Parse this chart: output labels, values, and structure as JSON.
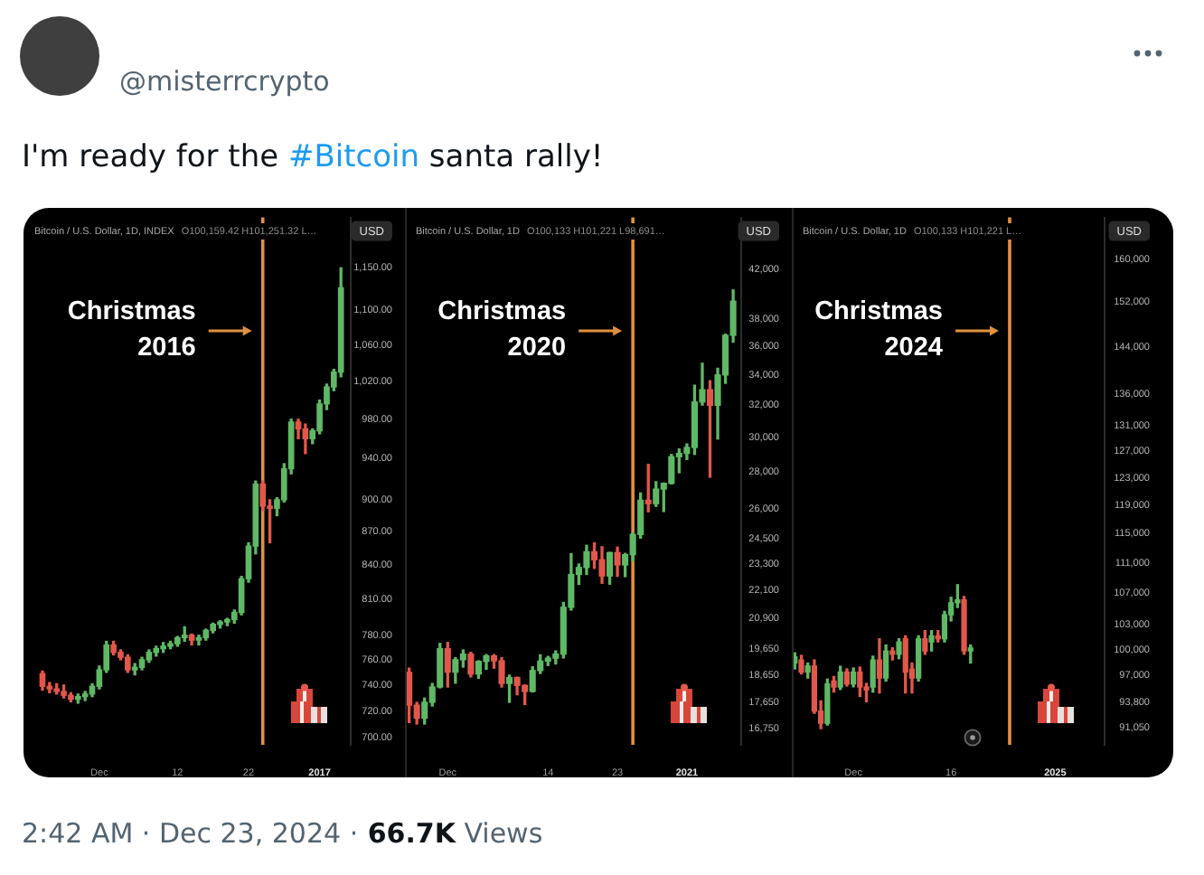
{
  "chart_data": [
    {
      "type": "other",
      "title": "I'm ready for the #Bitcoin santa rally!",
      "annotations": [
        "@misterrcrypto"
      ]
    },
    {
      "type": "candlestick",
      "title": "Bitcoin / U.S. Dollar, 1D, INDEX",
      "subtitle": "O100,159.42 H101,251.32 L…",
      "ylabel": "USD",
      "log": true,
      "x": [
        "2016-11-23",
        "2016-11-24",
        "2016-11-25",
        "2016-11-26",
        "2016-11-27",
        "2016-11-28",
        "2016-11-29",
        "2016-11-30",
        "2016-12-01",
        "2016-12-02",
        "2016-12-03",
        "2016-12-04",
        "2016-12-05",
        "2016-12-06",
        "2016-12-07",
        "2016-12-08",
        "2016-12-09",
        "2016-12-10",
        "2016-12-11",
        "2016-12-12",
        "2016-12-13",
        "2016-12-14",
        "2016-12-15",
        "2016-12-16",
        "2016-12-17",
        "2016-12-18",
        "2016-12-19",
        "2016-12-20",
        "2016-12-21",
        "2016-12-22",
        "2016-12-23",
        "2016-12-24",
        "2016-12-25",
        "2016-12-26",
        "2016-12-27",
        "2016-12-28",
        "2016-12-29",
        "2016-12-30",
        "2016-12-31",
        "2017-01-01",
        "2017-01-02",
        "2017-01-03",
        "2017-01-04"
      ],
      "ohlc": [
        [
          749,
          751,
          736,
          739
        ],
        [
          739,
          742,
          734,
          737
        ],
        [
          737,
          741,
          733,
          735
        ],
        [
          735,
          740,
          730,
          732
        ],
        [
          732,
          734,
          727,
          729
        ],
        [
          729,
          733,
          726,
          731
        ],
        [
          731,
          735,
          728,
          733
        ],
        [
          733,
          741,
          731,
          739
        ],
        [
          739,
          755,
          737,
          752
        ],
        [
          752,
          775,
          750,
          772
        ],
        [
          772,
          775,
          764,
          766
        ],
        [
          766,
          768,
          760,
          762
        ],
        [
          762,
          764,
          750,
          752
        ],
        [
          752,
          757,
          748,
          754
        ],
        [
          754,
          762,
          752,
          760
        ],
        [
          760,
          768,
          758,
          766
        ],
        [
          766,
          771,
          763,
          769
        ],
        [
          769,
          774,
          766,
          771
        ],
        [
          771,
          775,
          769,
          773
        ],
        [
          773,
          779,
          771,
          778
        ],
        [
          778,
          787,
          775,
          780
        ],
        [
          780,
          781,
          772,
          776
        ],
        [
          776,
          780,
          772,
          778
        ],
        [
          778,
          785,
          776,
          784
        ],
        [
          784,
          790,
          782,
          789
        ],
        [
          789,
          792,
          786,
          791
        ],
        [
          791,
          794,
          788,
          793
        ],
        [
          793,
          801,
          790,
          799
        ],
        [
          799,
          830,
          797,
          828
        ],
        [
          828,
          860,
          825,
          857
        ],
        [
          857,
          918,
          850,
          915
        ],
        [
          915,
          918,
          890,
          894
        ],
        [
          894,
          900,
          860,
          892
        ],
        [
          892,
          902,
          885,
          900
        ],
        [
          900,
          935,
          898,
          930
        ],
        [
          930,
          980,
          925,
          977
        ],
        [
          977,
          980,
          960,
          970
        ],
        [
          970,
          975,
          945,
          960
        ],
        [
          960,
          970,
          955,
          968
        ],
        [
          968,
          1000,
          965,
          996
        ],
        [
          996,
          1017,
          990,
          1014
        ],
        [
          1014,
          1033,
          1010,
          1030
        ],
        [
          1030,
          1150,
          1025,
          1126
        ]
      ],
      "xlim": [
        "2016-11-20T08:00",
        "2017-01-05T09:00"
      ],
      "ylim": [
        694.7,
        1212.8
      ],
      "xticks": [
        {
          "value": "2016-12-01",
          "label": "Dec"
        },
        {
          "value": "2016-12-12",
          "label": "12"
        },
        {
          "value": "2016-12-22",
          "label": "22"
        },
        {
          "value": "2017-01-01",
          "label": "2017"
        }
      ],
      "yticks": [
        {
          "value": 700,
          "label": "700.00"
        },
        {
          "value": 720,
          "label": "720.00"
        },
        {
          "value": 740,
          "label": "740.00"
        },
        {
          "value": 760,
          "label": "760.00"
        },
        {
          "value": 780,
          "label": "780.00"
        },
        {
          "value": 810,
          "label": "810.00"
        },
        {
          "value": 840,
          "label": "840.00"
        },
        {
          "value": 870,
          "label": "870.00"
        },
        {
          "value": 900,
          "label": "900.00"
        },
        {
          "value": 940,
          "label": "940.00"
        },
        {
          "value": 980,
          "label": "980.00"
        },
        {
          "value": 1020,
          "label": "1,020.00"
        },
        {
          "value": 1060,
          "label": "1,060.00"
        },
        {
          "value": 1100,
          "label": "1,100.00"
        },
        {
          "value": 1150,
          "label": "1,150.00"
        }
      ],
      "ref_lines": [
        {
          "axis": "x",
          "value": "2016-12-24",
          "label": "Christmas 2016",
          "color": "#e0913f"
        }
      ]
    },
    {
      "type": "candlestick",
      "title": "Bitcoin / U.S. Dollar, 1D",
      "subtitle": "O100,133 H101,221 L98,691…",
      "ylabel": "USD",
      "log": true,
      "x": [
        "2020-11-26",
        "2020-11-27",
        "2020-11-28",
        "2020-11-29",
        "2020-11-30",
        "2020-12-01",
        "2020-12-02",
        "2020-12-03",
        "2020-12-04",
        "2020-12-05",
        "2020-12-06",
        "2020-12-07",
        "2020-12-08",
        "2020-12-09",
        "2020-12-10",
        "2020-12-11",
        "2020-12-12",
        "2020-12-13",
        "2020-12-14",
        "2020-12-15",
        "2020-12-16",
        "2020-12-17",
        "2020-12-18",
        "2020-12-19",
        "2020-12-20",
        "2020-12-21",
        "2020-12-22",
        "2020-12-23",
        "2020-12-24",
        "2020-12-25",
        "2020-12-26",
        "2020-12-27",
        "2020-12-28",
        "2020-12-29",
        "2020-12-30",
        "2020-12-31",
        "2021-01-01",
        "2021-01-02",
        "2021-01-03",
        "2021-01-04",
        "2021-01-05",
        "2021-01-06",
        "2021-01-07"
      ],
      "ohlc": [
        [
          18740,
          18900,
          16950,
          17550
        ],
        [
          17550,
          17650,
          16900,
          17100
        ],
        [
          17100,
          17800,
          16900,
          17650
        ],
        [
          17650,
          18330,
          17520,
          18200
        ],
        [
          18200,
          19860,
          18170,
          19650
        ],
        [
          19650,
          19900,
          18200,
          18750
        ],
        [
          18750,
          19300,
          18340,
          19220
        ],
        [
          19220,
          19600,
          18940,
          19440
        ],
        [
          19440,
          19510,
          18570,
          18680
        ],
        [
          18680,
          19180,
          18520,
          19160
        ],
        [
          19160,
          19420,
          18860,
          19370
        ],
        [
          19370,
          19420,
          18900,
          19180
        ],
        [
          19180,
          19300,
          18200,
          18330
        ],
        [
          18330,
          18640,
          17650,
          18550
        ],
        [
          18550,
          18560,
          17920,
          18260
        ],
        [
          18260,
          18270,
          17570,
          18040
        ],
        [
          18040,
          18950,
          18020,
          18810
        ],
        [
          18810,
          19410,
          18700,
          19170
        ],
        [
          19170,
          19350,
          19000,
          19280
        ],
        [
          19280,
          19560,
          19060,
          19440
        ],
        [
          19440,
          21560,
          19290,
          21350
        ],
        [
          21350,
          23770,
          21230,
          22800
        ],
        [
          22800,
          23280,
          22350,
          23120
        ],
        [
          23120,
          24170,
          22800,
          23860
        ],
        [
          23860,
          24290,
          23080,
          23480
        ],
        [
          23480,
          24100,
          22400,
          22730
        ],
        [
          22730,
          23830,
          22360,
          23820
        ],
        [
          23820,
          24080,
          22720,
          23240
        ],
        [
          23240,
          23780,
          22700,
          23720
        ],
        [
          23720,
          24780,
          23420,
          24700
        ],
        [
          24700,
          26840,
          24520,
          26450
        ],
        [
          26450,
          28420,
          25850,
          26270
        ],
        [
          26270,
          27450,
          26130,
          27050
        ],
        [
          27050,
          27380,
          25860,
          27360
        ],
        [
          27360,
          28990,
          27330,
          28860
        ],
        [
          28860,
          29310,
          27950,
          29050
        ],
        [
          29050,
          29610,
          28700,
          29400
        ],
        [
          29400,
          33300,
          28990,
          32200
        ],
        [
          32200,
          34800,
          32000,
          33000
        ],
        [
          33000,
          33600,
          27700,
          31990
        ],
        [
          31990,
          34450,
          29900,
          33990
        ],
        [
          33990,
          36880,
          33430,
          36800
        ],
        [
          36800,
          40300,
          36300,
          39400
        ]
      ],
      "xlim": [
        "2020-11-25T11:00",
        "2021-01-08T01:00"
      ],
      "ylim": [
        16210,
        46590
      ],
      "xticks": [
        {
          "value": "2020-12-01",
          "label": "Dec"
        },
        {
          "value": "2020-12-14",
          "label": "14"
        },
        {
          "value": "2020-12-23",
          "label": "23"
        },
        {
          "value": "2021-01-01",
          "label": "2021"
        }
      ],
      "yticks": [
        {
          "value": 16750,
          "label": "16,750"
        },
        {
          "value": 17650,
          "label": "17,650"
        },
        {
          "value": 18650,
          "label": "18,650"
        },
        {
          "value": 19650,
          "label": "19,650"
        },
        {
          "value": 20900,
          "label": "20,900"
        },
        {
          "value": 22100,
          "label": "22,100"
        },
        {
          "value": 23300,
          "label": "23,300"
        },
        {
          "value": 24500,
          "label": "24,500"
        },
        {
          "value": 26000,
          "label": "26,000"
        },
        {
          "value": 28000,
          "label": "28,000"
        },
        {
          "value": 30000,
          "label": "30,000"
        },
        {
          "value": 32000,
          "label": "32,000"
        },
        {
          "value": 34000,
          "label": "34,000"
        },
        {
          "value": 36000,
          "label": "36,000"
        },
        {
          "value": 38000,
          "label": "38,000"
        },
        {
          "value": 42000,
          "label": "42,000"
        }
      ],
      "ref_lines": [
        {
          "axis": "x",
          "value": "2020-12-25",
          "label": "Christmas 2020",
          "color": "#e0913f"
        }
      ]
    },
    {
      "type": "candlestick",
      "title": "Bitcoin / U.S. Dollar, 1D",
      "subtitle": "O100,133 H101,221 L…",
      "ylabel": "USD",
      "log": true,
      "x": [
        "2024-11-22",
        "2024-11-23",
        "2024-11-24",
        "2024-11-25",
        "2024-11-26",
        "2024-11-27",
        "2024-11-28",
        "2024-11-29",
        "2024-11-30",
        "2024-12-01",
        "2024-12-02",
        "2024-12-03",
        "2024-12-04",
        "2024-12-05",
        "2024-12-06",
        "2024-12-07",
        "2024-12-08",
        "2024-12-09",
        "2024-12-10",
        "2024-12-11",
        "2024-12-12",
        "2024-12-13",
        "2024-12-14",
        "2024-12-15",
        "2024-12-16",
        "2024-12-17",
        "2024-12-18",
        "2024-12-19"
      ],
      "ohlc": [
        [
          98380,
          99600,
          97700,
          99120
        ],
        [
          98750,
          99300,
          97100,
          97320
        ],
        [
          97320,
          98380,
          96620,
          98040
        ],
        [
          98040,
          98750,
          92600,
          92850
        ],
        [
          92850,
          94000,
          90900,
          91500
        ],
        [
          91500,
          96500,
          91300,
          95930
        ],
        [
          96270,
          96800,
          95000,
          95580
        ],
        [
          95580,
          98000,
          95300,
          97320
        ],
        [
          97320,
          97700,
          95700,
          95930
        ],
        [
          95930,
          97800,
          95600,
          97320
        ],
        [
          97320,
          97900,
          94500,
          95580
        ],
        [
          95580,
          96000,
          93900,
          95250
        ],
        [
          95580,
          99200,
          95000,
          98750
        ],
        [
          98750,
          101300,
          94900,
          96620
        ],
        [
          96620,
          100550,
          96270,
          99820
        ],
        [
          99820,
          100200,
          98750,
          99430
        ],
        [
          99430,
          101300,
          98900,
          100920
        ],
        [
          101300,
          101660,
          94900,
          97320
        ],
        [
          97670,
          98380,
          94900,
          96620
        ],
        [
          96620,
          101660,
          96270,
          101300
        ],
        [
          101300,
          102300,
          99430,
          99820
        ],
        [
          100920,
          102300,
          99820,
          101660
        ],
        [
          101660,
          102300,
          100920,
          101300
        ],
        [
          101300,
          104700,
          100920,
          104270
        ],
        [
          104270,
          106500,
          103500,
          105800
        ],
        [
          105800,
          108130,
          105200,
          106170
        ],
        [
          106170,
          106600,
          99430,
          99820
        ],
        [
          99820,
          100550,
          98380,
          100190
        ]
      ],
      "xlim": [
        "2024-11-21T13:00",
        "2025-01-08T14:00"
      ],
      "ylim": [
        89150,
        168300
      ],
      "xticks": [
        {
          "value": "2024-12-01",
          "label": "Dec"
        },
        {
          "value": "2024-12-16",
          "label": "16"
        },
        {
          "value": "2025-01-01",
          "label": "2025"
        }
      ],
      "yticks": [
        {
          "value": 91050,
          "label": "91,050"
        },
        {
          "value": 93800,
          "label": "93,800"
        },
        {
          "value": 97000,
          "label": "97,000"
        },
        {
          "value": 100000,
          "label": "100,000"
        },
        {
          "value": 103000,
          "label": "103,000"
        },
        {
          "value": 107000,
          "label": "107,000"
        },
        {
          "value": 111000,
          "label": "111,000"
        },
        {
          "value": 115000,
          "label": "115,000"
        },
        {
          "value": 119000,
          "label": "119,000"
        },
        {
          "value": 123000,
          "label": "123,000"
        },
        {
          "value": 127000,
          "label": "127,000"
        },
        {
          "value": 131000,
          "label": "131,000"
        },
        {
          "value": 136000,
          "label": "136,000"
        },
        {
          "value": 144000,
          "label": "144,000"
        },
        {
          "value": 152000,
          "label": "152,000"
        },
        {
          "value": 160000,
          "label": "160,000"
        }
      ],
      "ref_lines": [
        {
          "axis": "x",
          "value": "2024-12-25",
          "label": "Christmas 2024",
          "color": "#e0913f"
        }
      ]
    },
    {
      "type": "other",
      "annotations": [
        "2:42 AM · Dec 23, 2024 ·",
        "66.7K",
        "Views"
      ]
    }
  ]
}
